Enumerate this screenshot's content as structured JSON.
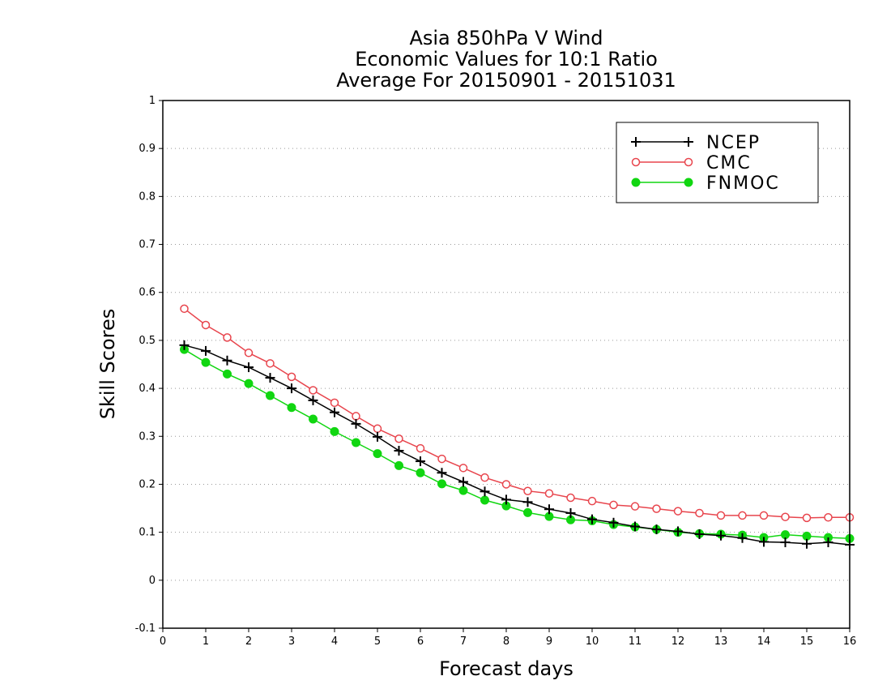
{
  "chart_data": {
    "type": "line",
    "title_lines": [
      "Asia 850hPa V Wind",
      "Economic Values for 10:1 Ratio",
      "Average For 20150901 - 20151031"
    ],
    "xlabel": "Forecast days",
    "ylabel": "Skill Scores",
    "xlim": [
      0,
      16
    ],
    "ylim": [
      -0.1,
      1
    ],
    "xticks": [
      "0",
      "1",
      "2",
      "3",
      "4",
      "5",
      "6",
      "7",
      "8",
      "9",
      "10",
      "11",
      "12",
      "13",
      "14",
      "15",
      "16"
    ],
    "yticks": [
      "-0.1",
      "0",
      "0.1",
      "0.2",
      "0.3",
      "0.4",
      "0.5",
      "0.6",
      "0.7",
      "0.8",
      "0.9",
      "1"
    ],
    "grid": "horizontal dotted",
    "legend_position": "top-right",
    "x": [
      0.5,
      1,
      1.5,
      2,
      2.5,
      3,
      3.5,
      4,
      4.5,
      5,
      5.5,
      6,
      6.5,
      7,
      7.5,
      8,
      8.5,
      9,
      9.5,
      10,
      10.5,
      11,
      11.5,
      12,
      12.5,
      13,
      13.5,
      14,
      14.5,
      15,
      15.5,
      16
    ],
    "series": [
      {
        "name": "NCEP",
        "color": "#000000",
        "marker": "plus",
        "values": [
          0.49,
          0.478,
          0.458,
          0.444,
          0.422,
          0.4,
          0.375,
          0.35,
          0.326,
          0.299,
          0.27,
          0.248,
          0.224,
          0.205,
          0.185,
          0.168,
          0.163,
          0.148,
          0.14,
          0.127,
          0.12,
          0.112,
          0.106,
          0.102,
          0.096,
          0.093,
          0.088,
          0.08,
          0.079,
          0.076,
          0.079,
          0.074
        ]
      },
      {
        "name": "CMC",
        "color": "#e8454d",
        "marker": "open-circle",
        "values": [
          0.566,
          0.532,
          0.506,
          0.474,
          0.452,
          0.424,
          0.396,
          0.37,
          0.342,
          0.316,
          0.295,
          0.275,
          0.253,
          0.234,
          0.214,
          0.2,
          0.186,
          0.181,
          0.172,
          0.165,
          0.157,
          0.154,
          0.149,
          0.144,
          0.14,
          0.135,
          0.135,
          0.135,
          0.132,
          0.13,
          0.131,
          0.131
        ]
      },
      {
        "name": "FNMOC",
        "color": "#11d611",
        "marker": "filled-circle",
        "values": [
          0.481,
          0.454,
          0.43,
          0.41,
          0.385,
          0.36,
          0.336,
          0.31,
          0.287,
          0.264,
          0.239,
          0.224,
          0.201,
          0.187,
          0.167,
          0.155,
          0.141,
          0.133,
          0.126,
          0.124,
          0.116,
          0.111,
          0.106,
          0.1,
          0.097,
          0.096,
          0.094,
          0.089,
          0.095,
          0.092,
          0.089,
          0.087
        ]
      }
    ]
  }
}
